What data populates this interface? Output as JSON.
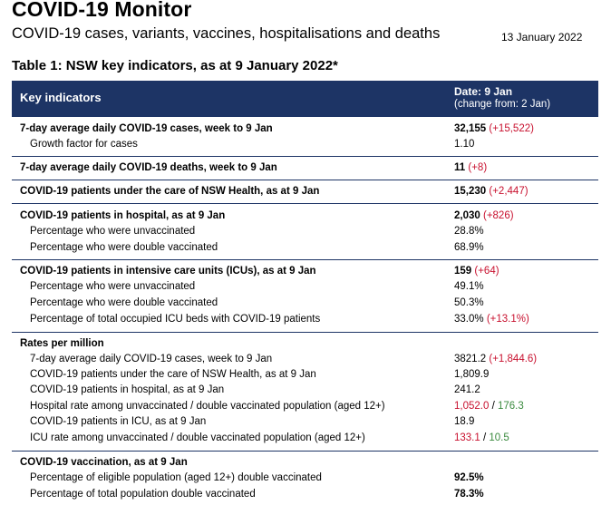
{
  "header": {
    "title": "COVID-19 Monitor",
    "subtitle": "COVID-19 cases, variants, vaccines, hospitalisations and deaths",
    "date": "13 January 2022"
  },
  "table": {
    "title": "Table 1: NSW key indicators, as at 9 January 2022*",
    "col_left": "Key indicators",
    "col_right_line1": "Date: 9 Jan",
    "col_right_line2": "(change from: 2 Jan)"
  },
  "rows": {
    "cases_label": "7-day average daily COVID-19 cases, week to 9 Jan",
    "cases_value": "32,155",
    "cases_change": "(+15,522)",
    "growth_label": "Growth factor for cases",
    "growth_value": "1.10",
    "deaths_label": "7-day average daily COVID-19 deaths, week to 9 Jan",
    "deaths_value": "11",
    "deaths_change": "(+8)",
    "care_label": "COVID-19 patients under the care of NSW Health, as at 9 Jan",
    "care_value": "15,230",
    "care_change": "(+2,447)",
    "hosp_label": "COVID-19 patients in hospital, as at 9 Jan",
    "hosp_value": "2,030",
    "hosp_change": "(+826)",
    "hosp_unvax_label": "Percentage who were unvaccinated",
    "hosp_unvax_value": "28.8%",
    "hosp_dvax_label": "Percentage who were double vaccinated",
    "hosp_dvax_value": "68.9%",
    "icu_label": "COVID-19 patients in intensive care units (ICUs), as at 9 Jan",
    "icu_value": "159",
    "icu_change": "(+64)",
    "icu_unvax_label": "Percentage who were unvaccinated",
    "icu_unvax_value": "49.1%",
    "icu_dvax_label": "Percentage who were double vaccinated",
    "icu_dvax_value": "50.3%",
    "icu_beds_label": "Percentage of total occupied ICU beds with COVID-19 patients",
    "icu_beds_value": "33.0%",
    "icu_beds_change": "(+13.1%)",
    "rates_label": "Rates per million",
    "rate_cases_label": "7-day average daily COVID-19 cases, week to 9 Jan",
    "rate_cases_value": "3821.2",
    "rate_cases_change": "(+1,844.6)",
    "rate_care_label": "COVID-19 patients under the care of NSW Health, as at 9 Jan",
    "rate_care_value": "1,809.9",
    "rate_hosp_label": "COVID-19 patients in hospital, as at 9 Jan",
    "rate_hosp_value": "241.2",
    "rate_hosp_vax_label": "Hospital rate among unvaccinated / double vaccinated population (aged 12+)",
    "rate_hosp_vax_unvax": "1,052.0",
    "rate_hosp_vax_slash": " / ",
    "rate_hosp_vax_dvax": "176.3",
    "rate_icu_label": "COVID-19 patients in ICU, as at 9 Jan",
    "rate_icu_value": "18.9",
    "rate_icu_vax_label": "ICU rate among unvaccinated / double vaccinated population (aged 12+)",
    "rate_icu_vax_unvax": "133.1",
    "rate_icu_vax_slash": " / ",
    "rate_icu_vax_dvax": "10.5",
    "vacc_label": "COVID-19 vaccination, as at 9 Jan",
    "vacc_eligible_label": "Percentage of eligible population (aged 12+) double vaccinated",
    "vacc_eligible_value": "92.5%",
    "vacc_total_label": "Percentage of total population double vaccinated",
    "vacc_total_value": "78.3%"
  },
  "colors": {
    "header_bg": "#1d3465",
    "increase": "#c8102e",
    "decrease": "#3a8a3e"
  }
}
